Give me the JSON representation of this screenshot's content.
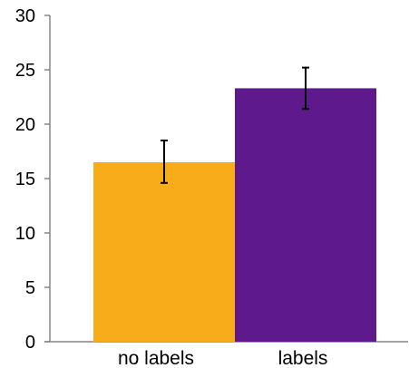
{
  "chart_data": {
    "type": "bar",
    "categories": [
      "no labels",
      "labels"
    ],
    "values": [
      16.5,
      23.3
    ],
    "error_bars": [
      {
        "low": 14.6,
        "high": 18.5
      },
      {
        "low": 21.4,
        "high": 25.2
      }
    ],
    "colors": [
      "#F9AC1A",
      "#5E1A8C"
    ],
    "title": "",
    "xlabel": "",
    "ylabel": "",
    "ylim": [
      0,
      30
    ],
    "yticks": [
      0,
      5,
      10,
      15,
      20,
      25,
      30
    ],
    "grid": false,
    "legend": "none"
  }
}
